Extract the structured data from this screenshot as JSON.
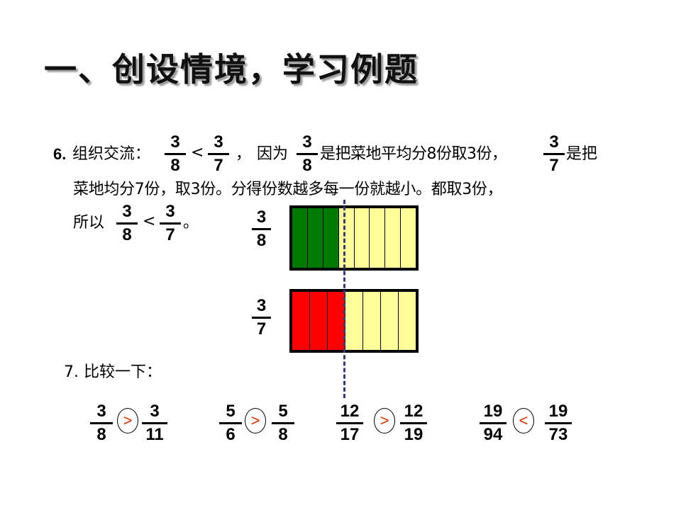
{
  "title": "一、创设情境，学习例题",
  "ex6": {
    "num": "6.",
    "line1_a": "组织交流：",
    "f1": {
      "n": "3",
      "d": "8"
    },
    "lt": "<",
    "f2": {
      "n": "3",
      "d": "7"
    },
    "comma": "，",
    "line1_b": "因为",
    "f3": {
      "n": "3",
      "d": "8"
    },
    "line1_c": "是把菜地平均分8份取3份，",
    "f4": {
      "n": "3",
      "d": "7"
    },
    "line1_d": "是把",
    "line2": "菜地均分7份，取3份。分得份数越多每一份就越小。都取3份，",
    "line3_a": "所以",
    "f5": {
      "n": "3",
      "d": "8"
    },
    "f6": {
      "n": "3",
      "d": "7"
    },
    "period": "。"
  },
  "bars": [
    {
      "label": {
        "n": "3",
        "d": "8"
      },
      "parts": 8,
      "shaded": 3,
      "shade_color": "#007a00",
      "base_color": "#ffff99"
    },
    {
      "label": {
        "n": "3",
        "d": "7"
      },
      "parts": 7,
      "shaded": 3,
      "shade_color": "#ff0000",
      "base_color": "#ffff99"
    }
  ],
  "ex7": {
    "heading": "7. 比较一下：",
    "symbol_color": "#e03000",
    "pairs": [
      {
        "a": {
          "n": "3",
          "d": "8"
        },
        "sym": ">",
        "b": {
          "n": "3",
          "d": "11"
        }
      },
      {
        "a": {
          "n": "5",
          "d": "6"
        },
        "sym": ">",
        "b": {
          "n": "5",
          "d": "8"
        }
      },
      {
        "a": {
          "n": "12",
          "d": "17"
        },
        "sym": ">",
        "b": {
          "n": "12",
          "d": "19"
        }
      },
      {
        "a": {
          "n": "19",
          "d": "94"
        },
        "sym": "<",
        "b": {
          "n": "19",
          "d": "73"
        }
      }
    ]
  }
}
